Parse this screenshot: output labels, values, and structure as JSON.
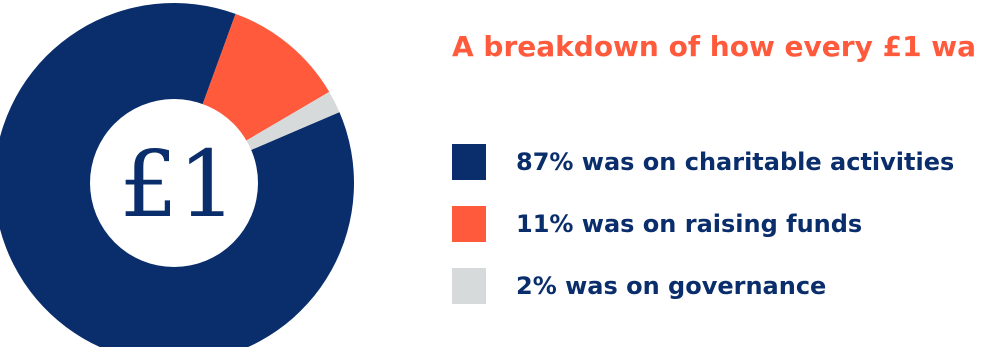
{
  "title": "A breakdown of how every £1 wa",
  "center_label": "£1",
  "colors": {
    "charitable": "#0a2d6b",
    "fundraising": "#ff5a3c",
    "governance": "#d7dadb",
    "background": "#ffffff"
  },
  "legend": [
    {
      "label": "87% was on charitable activities",
      "color": "#0a2d6b"
    },
    {
      "label": "11% was on raising funds",
      "color": "#ff5a3c"
    },
    {
      "label": "2% was on governance",
      "color": "#d7dadb"
    }
  ],
  "chart_data": {
    "type": "pie",
    "title": "A breakdown of how every £1 wa",
    "center_label": "£1",
    "categories": [
      "charitable activities",
      "raising funds",
      "governance"
    ],
    "values": [
      87,
      11,
      2
    ],
    "colors": [
      "#0a2d6b",
      "#ff5a3c",
      "#d7dadb"
    ]
  }
}
